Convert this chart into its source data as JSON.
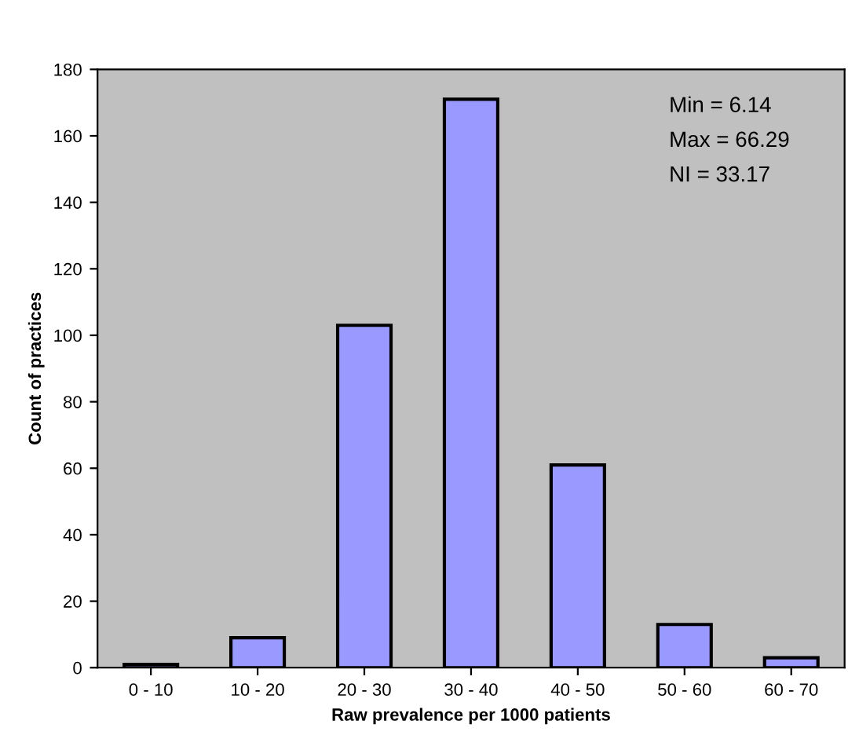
{
  "chart_data": {
    "type": "bar",
    "xlabel": "Raw prevalence per 1000 patients",
    "ylabel": "Count of practices",
    "categories": [
      "0 - 10",
      "10 - 20",
      "20 - 30",
      "30 - 40",
      "40 - 50",
      "50 - 60",
      "60 - 70"
    ],
    "values": [
      1,
      9,
      103,
      171,
      61,
      13,
      3
    ],
    "color": "#9999ff",
    "ylim": [
      0,
      180
    ],
    "yticks": [
      0,
      20,
      40,
      60,
      80,
      100,
      120,
      140,
      160,
      180
    ],
    "grid": false,
    "legend": false,
    "annotations": [
      "Min = 6.14",
      "Max = 66.29",
      "NI = 33.17"
    ]
  }
}
